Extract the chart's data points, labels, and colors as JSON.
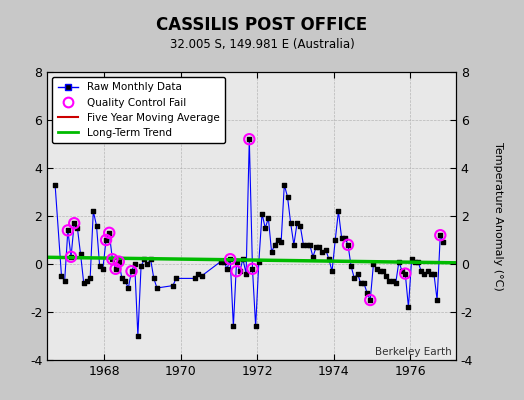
{
  "title": "CASSILIS POST OFFICE",
  "subtitle": "32.005 S, 149.981 E (Australia)",
  "ylabel": "Temperature Anomaly (°C)",
  "credit": "Berkeley Earth",
  "xlim": [
    1966.5,
    1977.2
  ],
  "ylim": [
    -4,
    8
  ],
  "yticks": [
    -4,
    -2,
    0,
    2,
    4,
    6,
    8
  ],
  "xticks": [
    1968,
    1970,
    1972,
    1974,
    1976
  ],
  "fig_bg_color": "#c8c8c8",
  "plot_bg_color": "#e8e8e8",
  "raw_line_color": "#0000ff",
  "raw_marker_color": "#000000",
  "qc_fail_color": "#ff00ff",
  "moving_avg_color": "#cc0000",
  "trend_color": "#00bb00",
  "raw_x": [
    1966.708,
    1966.875,
    1966.958,
    1967.042,
    1967.125,
    1967.208,
    1967.292,
    1967.375,
    1967.458,
    1967.542,
    1967.625,
    1967.708,
    1967.792,
    1967.875,
    1967.958,
    1968.042,
    1968.125,
    1968.208,
    1968.292,
    1968.375,
    1968.458,
    1968.542,
    1968.625,
    1968.708,
    1968.792,
    1968.875,
    1968.958,
    1969.042,
    1969.125,
    1969.208,
    1969.292,
    1969.375,
    1969.792,
    1969.875,
    1970.375,
    1970.458,
    1970.542,
    1971.042,
    1971.125,
    1971.208,
    1971.292,
    1971.375,
    1971.458,
    1971.542,
    1971.625,
    1971.708,
    1971.792,
    1971.875,
    1971.958,
    1972.042,
    1972.125,
    1972.208,
    1972.292,
    1972.375,
    1972.458,
    1972.542,
    1972.625,
    1972.708,
    1972.792,
    1972.875,
    1972.958,
    1973.042,
    1973.125,
    1973.208,
    1973.292,
    1973.375,
    1973.458,
    1973.542,
    1973.625,
    1973.708,
    1973.792,
    1973.875,
    1973.958,
    1974.042,
    1974.125,
    1974.208,
    1974.292,
    1974.375,
    1974.458,
    1974.542,
    1974.625,
    1974.708,
    1974.792,
    1974.875,
    1974.958,
    1975.042,
    1975.125,
    1975.208,
    1975.292,
    1975.375,
    1975.458,
    1975.542,
    1975.625,
    1975.708,
    1975.792,
    1975.875,
    1975.958,
    1976.042,
    1976.125,
    1976.208,
    1976.292,
    1976.375,
    1976.458,
    1976.542,
    1976.625,
    1976.708,
    1976.792,
    1976.875
  ],
  "raw_y": [
    3.3,
    -0.5,
    -0.7,
    1.4,
    0.3,
    1.7,
    1.5,
    0.4,
    -0.8,
    -0.7,
    -0.6,
    2.2,
    1.6,
    -0.1,
    -0.2,
    1.0,
    1.3,
    0.2,
    -0.2,
    0.1,
    -0.6,
    -0.7,
    -1.0,
    -0.3,
    0.0,
    -3.0,
    -0.1,
    0.2,
    0.0,
    0.2,
    -0.6,
    -1.0,
    -0.9,
    -0.6,
    -0.6,
    -0.4,
    -0.5,
    0.1,
    0.1,
    -0.2,
    0.2,
    -2.6,
    0.1,
    -0.3,
    0.2,
    -0.4,
    5.2,
    -0.2,
    -2.6,
    0.1,
    2.1,
    1.5,
    1.9,
    0.5,
    0.8,
    1.0,
    0.9,
    3.3,
    2.8,
    1.7,
    0.8,
    1.7,
    1.6,
    0.8,
    0.8,
    0.8,
    0.3,
    0.7,
    0.7,
    0.5,
    0.6,
    0.2,
    -0.3,
    1.0,
    2.2,
    1.1,
    1.1,
    0.8,
    -0.1,
    -0.6,
    -0.4,
    -0.8,
    -0.8,
    -1.2,
    -1.5,
    0.0,
    -0.2,
    -0.3,
    -0.3,
    -0.5,
    -0.7,
    -0.7,
    -0.8,
    0.1,
    -0.3,
    -0.4,
    -1.8,
    0.2,
    0.1,
    0.1,
    -0.3,
    -0.4,
    -0.3,
    -0.4,
    -0.4,
    -1.5,
    1.2,
    0.9
  ],
  "qc_x": [
    1967.042,
    1967.125,
    1967.208,
    1968.042,
    1968.125,
    1968.208,
    1968.292,
    1968.375,
    1968.708,
    1971.292,
    1971.458,
    1971.875,
    1971.792,
    1974.375,
    1974.958,
    1975.875,
    1976.792
  ],
  "qc_y": [
    1.4,
    0.3,
    1.7,
    1.0,
    1.3,
    0.2,
    -0.2,
    0.1,
    -0.3,
    0.2,
    -0.3,
    -0.2,
    5.2,
    0.8,
    -1.5,
    -0.4,
    1.2
  ],
  "trend_x": [
    1966.5,
    1977.2
  ],
  "trend_y": [
    0.28,
    0.05
  ],
  "moving_avg_x": [],
  "moving_avg_y": []
}
